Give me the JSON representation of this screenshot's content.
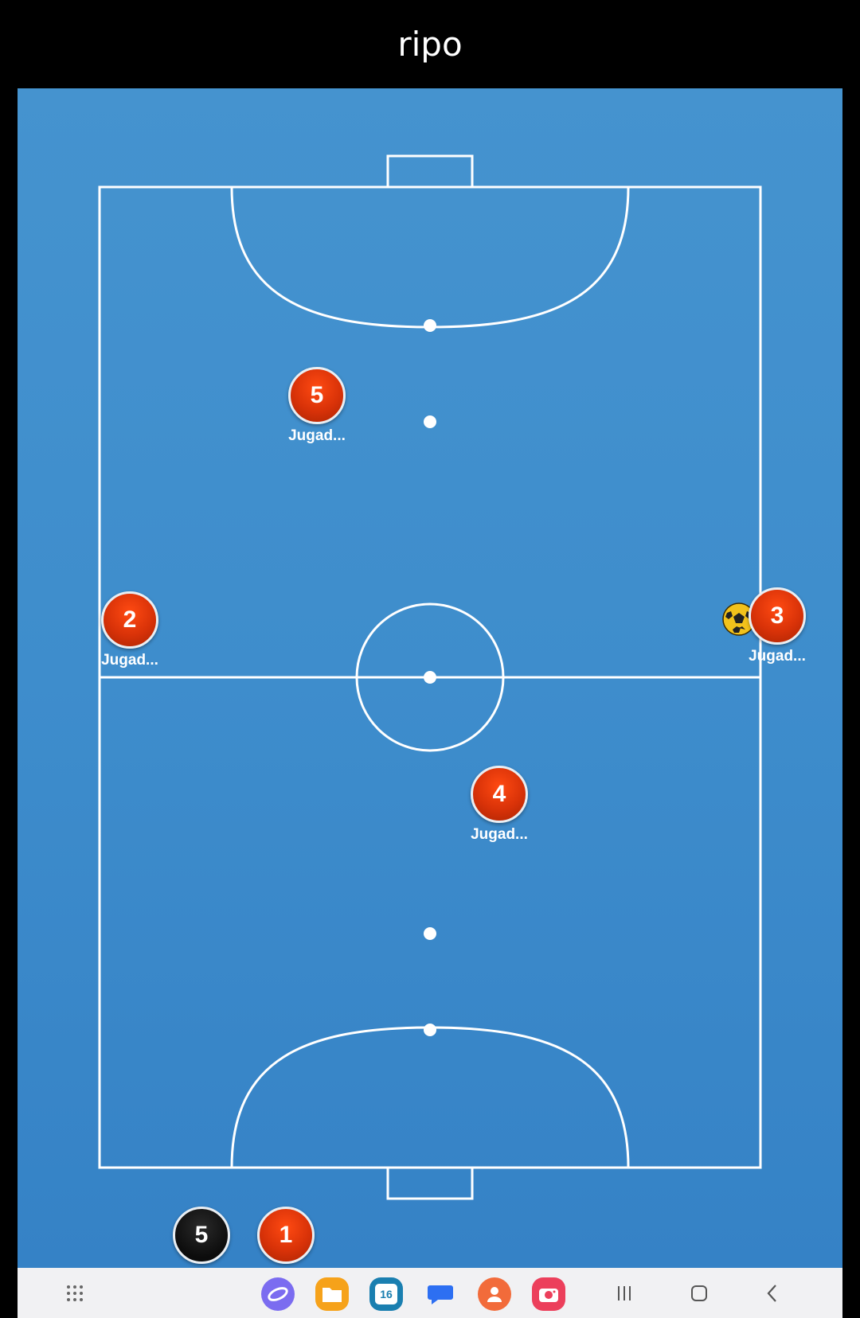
{
  "window": {
    "title": "ripo"
  },
  "court": {
    "background_color": "#3e8dcc",
    "line_color": "#ffffff"
  },
  "players": [
    {
      "number": "5",
      "label": "Jugad...",
      "team": "red"
    },
    {
      "number": "2",
      "label": "Jugad...",
      "team": "red"
    },
    {
      "number": "3",
      "label": "Jugad...",
      "team": "red"
    },
    {
      "number": "4",
      "label": "Jugad...",
      "team": "red"
    },
    {
      "number": "5",
      "label": "",
      "team": "black"
    },
    {
      "number": "1",
      "label": "",
      "team": "red"
    }
  ],
  "ball": {
    "icon": "soccer-ball-icon"
  },
  "navbar": {
    "apps": [
      {
        "name": "internet-app-icon",
        "color": "#7b6cf0"
      },
      {
        "name": "files-app-icon",
        "color": "#f6a21a"
      },
      {
        "name": "calendar-app-icon",
        "color": "#1a7fb0",
        "text": "16"
      },
      {
        "name": "messages-app-icon",
        "color": "#ffffff"
      },
      {
        "name": "contacts-app-icon",
        "color": "#f26b3a"
      },
      {
        "name": "camera-app-icon",
        "color": "#ec3f5b"
      }
    ]
  }
}
